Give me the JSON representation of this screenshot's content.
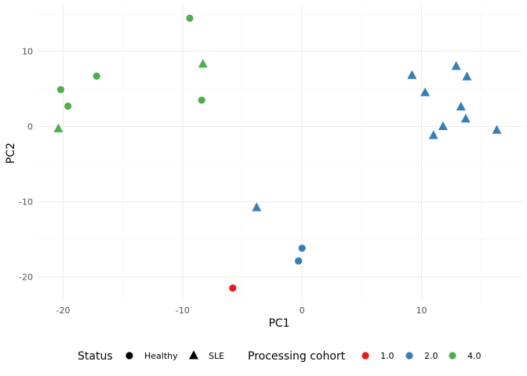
{
  "chart_data": {
    "type": "scatter",
    "xlabel": "PC1",
    "ylabel": "PC2",
    "xlim": [
      -22.2,
      18.5
    ],
    "ylim": [
      -23.3,
      16.2
    ],
    "x_ticks": [
      -20,
      -10,
      0,
      10
    ],
    "y_ticks": [
      -20,
      -10,
      0,
      10
    ],
    "x_tick_labels": [
      "-20",
      "-10",
      "0",
      "10"
    ],
    "y_tick_labels": [
      "-20",
      "-10",
      "0",
      "10"
    ],
    "grid": true,
    "legend_position": "bottom",
    "legends": {
      "shape": {
        "title": "Status",
        "items": [
          {
            "label": "Healthy",
            "shape": "circle"
          },
          {
            "label": "SLE",
            "shape": "triangle"
          }
        ]
      },
      "color": {
        "title": "Processing cohort",
        "items": [
          {
            "label": "1.0",
            "color": "#e41a1c"
          },
          {
            "label": "2.0",
            "color": "#377eb8"
          },
          {
            "label": "4.0",
            "color": "#4daf4a"
          }
        ]
      }
    },
    "points": [
      {
        "x": -9.4,
        "y": 14.4,
        "status": "Healthy",
        "cohort": "4.0"
      },
      {
        "x": -8.3,
        "y": 8.3,
        "status": "SLE",
        "cohort": "4.0"
      },
      {
        "x": -17.2,
        "y": 6.7,
        "status": "Healthy",
        "cohort": "4.0"
      },
      {
        "x": -20.2,
        "y": 4.9,
        "status": "Healthy",
        "cohort": "4.0"
      },
      {
        "x": -8.4,
        "y": 3.5,
        "status": "Healthy",
        "cohort": "4.0"
      },
      {
        "x": -19.6,
        "y": 2.7,
        "status": "Healthy",
        "cohort": "4.0"
      },
      {
        "x": -20.4,
        "y": -0.3,
        "status": "SLE",
        "cohort": "4.0"
      },
      {
        "x": -3.8,
        "y": -10.8,
        "status": "SLE",
        "cohort": "2.0"
      },
      {
        "x": 0.0,
        "y": -16.2,
        "status": "Healthy",
        "cohort": "2.0"
      },
      {
        "x": -0.3,
        "y": -17.9,
        "status": "Healthy",
        "cohort": "2.0"
      },
      {
        "x": -5.8,
        "y": -21.5,
        "status": "Healthy",
        "cohort": "1.0"
      },
      {
        "x": 9.2,
        "y": 6.8,
        "status": "SLE",
        "cohort": "2.0"
      },
      {
        "x": 12.9,
        "y": 8.0,
        "status": "SLE",
        "cohort": "2.0"
      },
      {
        "x": 13.8,
        "y": 6.6,
        "status": "SLE",
        "cohort": "2.0"
      },
      {
        "x": 10.3,
        "y": 4.5,
        "status": "SLE",
        "cohort": "2.0"
      },
      {
        "x": 13.3,
        "y": 2.6,
        "status": "SLE",
        "cohort": "2.0"
      },
      {
        "x": 13.7,
        "y": 1.0,
        "status": "SLE",
        "cohort": "2.0"
      },
      {
        "x": 11.8,
        "y": 0.0,
        "status": "SLE",
        "cohort": "2.0"
      },
      {
        "x": 11.0,
        "y": -1.2,
        "status": "SLE",
        "cohort": "2.0"
      },
      {
        "x": 16.3,
        "y": -0.5,
        "status": "SLE",
        "cohort": "2.0"
      }
    ]
  }
}
